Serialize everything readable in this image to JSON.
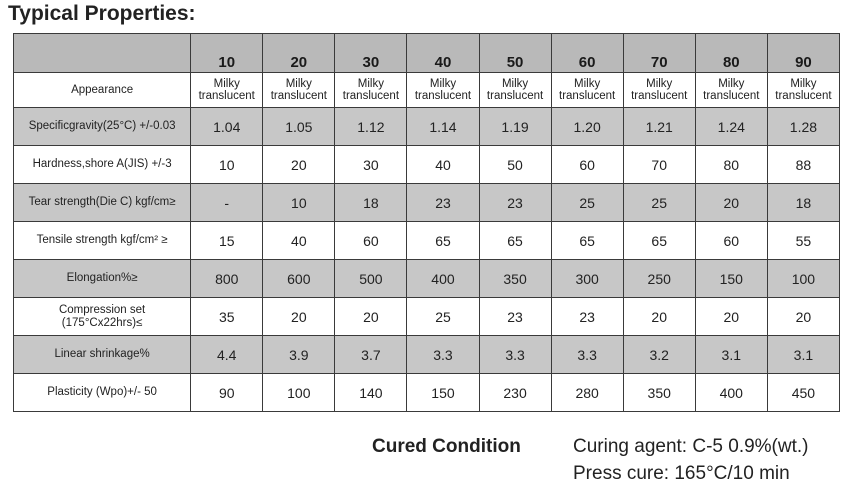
{
  "title": "Typical Properties:",
  "columns": [
    "10",
    "20",
    "30",
    "40",
    "50",
    "60",
    "70",
    "80",
    "90"
  ],
  "rows": [
    {
      "label": "Appearance",
      "small": true,
      "shade": false,
      "values": [
        "Milky\ntranslucent",
        "Milky\ntranslucent",
        "Milky\ntranslucent",
        "Milky\ntranslucent",
        "Milky\ntranslucent",
        "Milky\ntranslucent",
        "Milky\ntranslucent",
        "Milky\ntranslucent",
        "Milky\ntranslucent"
      ]
    },
    {
      "label": "Specificgravity(25°C) +/-0.03",
      "shade": true,
      "values": [
        "1.04",
        "1.05",
        "1.12",
        "1.14",
        "1.19",
        "1.20",
        "1.21",
        "1.24",
        "1.28"
      ]
    },
    {
      "label": "Hardness,shore A(JIS) +/-3",
      "shade": false,
      "values": [
        "10",
        "20",
        "30",
        "40",
        "50",
        "60",
        "70",
        "80",
        "88"
      ]
    },
    {
      "label": "Tear strength(Die C) kgf/cm≥",
      "shade": true,
      "values": [
        "-",
        "10",
        "18",
        "23",
        "23",
        "25",
        "25",
        "20",
        "18"
      ]
    },
    {
      "label": "Tensile strength kgf/cm² ≥",
      "shade": false,
      "values": [
        "15",
        "40",
        "60",
        "65",
        "65",
        "65",
        "65",
        "60",
        "55"
      ]
    },
    {
      "label": "Elongation%≥",
      "shade": true,
      "values": [
        "800",
        "600",
        "500",
        "400",
        "350",
        "300",
        "250",
        "150",
        "100"
      ]
    },
    {
      "label": "Compression set\n(175°Cx22hrs)≤",
      "shade": false,
      "values": [
        "35",
        "20",
        "20",
        "25",
        "23",
        "23",
        "20",
        "20",
        "20"
      ]
    },
    {
      "label": "Linear shrinkage%",
      "shade": true,
      "values": [
        "4.4",
        "3.9",
        "3.7",
        "3.3",
        "3.3",
        "3.3",
        "3.2",
        "3.1",
        "3.1"
      ]
    },
    {
      "label": "Plasticity (Wpo)+/- 50",
      "shade": false,
      "values": [
        "90",
        "100",
        "140",
        "150",
        "230",
        "280",
        "350",
        "400",
        "450"
      ]
    }
  ],
  "cured": {
    "heading": "Cured Condition",
    "lines": [
      "Curing agent: C-5 0.9%(wt.)",
      "Press cure: 165°C/10 min"
    ]
  }
}
